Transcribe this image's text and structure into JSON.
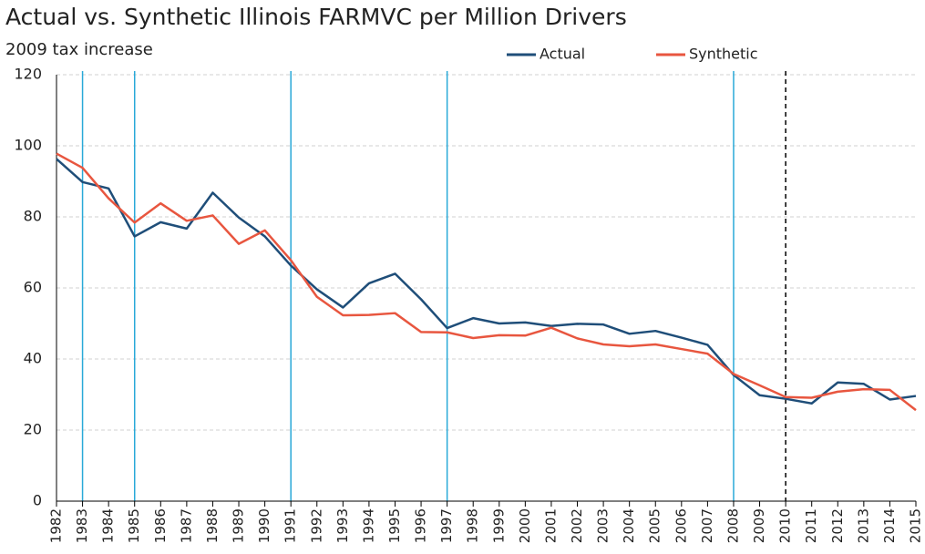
{
  "chart_data": {
    "type": "line",
    "title": "Actual vs. Synthetic Illinois FARMVC per Million Drivers",
    "subtitle": "2009 tax increase",
    "x": [
      1982,
      1983,
      1984,
      1985,
      1986,
      1987,
      1988,
      1989,
      1990,
      1991,
      1992,
      1993,
      1994,
      1995,
      1996,
      1997,
      1998,
      1999,
      2000,
      2001,
      2002,
      2003,
      2004,
      2005,
      2006,
      2007,
      2008,
      2009,
      2010,
      2011,
      2012,
      2013,
      2014,
      2015
    ],
    "xlim": [
      1982,
      2015
    ],
    "xticks": [
      1982,
      1983,
      1984,
      1985,
      1986,
      1987,
      1988,
      1989,
      1990,
      1991,
      1992,
      1993,
      1994,
      1995,
      1996,
      1997,
      1998,
      1999,
      2000,
      2001,
      2002,
      2003,
      2004,
      2005,
      2006,
      2007,
      2008,
      2009,
      2010,
      2011,
      2012,
      2013,
      2014,
      2015
    ],
    "ylim": [
      0,
      120
    ],
    "yticks": [
      0,
      20,
      40,
      60,
      80,
      100,
      120
    ],
    "grid": true,
    "legend": "top",
    "series": [
      {
        "name": "Actual",
        "color": "#1f4e79",
        "values": [
          96.3,
          89.8,
          88,
          74.5,
          78.5,
          76.7,
          86.8,
          79.8,
          74.5,
          66.3,
          59.6,
          54.5,
          61.3,
          64,
          56.8,
          48.7,
          51.5,
          50,
          50.3,
          49.3,
          49.9,
          49.7,
          47.1,
          47.9,
          46,
          44,
          35.5,
          29.8,
          28.8,
          27.5,
          33.4,
          33,
          28.6,
          29.6
        ]
      },
      {
        "name": "Synthetic",
        "color": "#e8563f",
        "values": [
          97.8,
          93.8,
          85.2,
          78.4,
          83.8,
          78.9,
          80.4,
          72.4,
          76.2,
          67.8,
          57.5,
          52.3,
          52.4,
          52.9,
          47.6,
          47.5,
          45.9,
          46.7,
          46.6,
          48.8,
          45.8,
          44.1,
          43.6,
          44.1,
          42.8,
          41.5,
          35.8,
          32.6,
          29.3,
          29.1,
          30.8,
          31.5,
          31.3,
          25.6
        ]
      }
    ],
    "vlines": [
      {
        "x": 1983,
        "color": "#29a9d8",
        "style": "solid"
      },
      {
        "x": 1985,
        "color": "#29a9d8",
        "style": "solid"
      },
      {
        "x": 1991,
        "color": "#29a9d8",
        "style": "solid"
      },
      {
        "x": 1997,
        "color": "#29a9d8",
        "style": "solid"
      },
      {
        "x": 2008,
        "color": "#29a9d8",
        "style": "solid"
      },
      {
        "x": 2010,
        "color": "#000000",
        "style": "dashed"
      }
    ]
  }
}
